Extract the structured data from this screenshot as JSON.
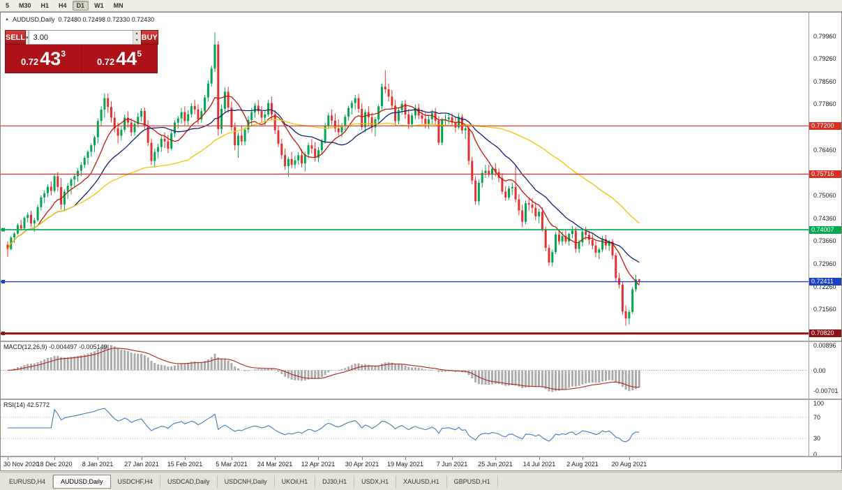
{
  "toolbar": {
    "timeframes": [
      {
        "label": "5",
        "active": false
      },
      {
        "label": "M30",
        "active": false
      },
      {
        "label": "H1",
        "active": false
      },
      {
        "label": "H4",
        "active": false
      },
      {
        "label": "D1",
        "active": true
      },
      {
        "label": "W1",
        "active": false
      },
      {
        "label": "MN",
        "active": false
      }
    ]
  },
  "chart": {
    "title_symbol": "AUDUSD,Daily",
    "title_ohlc": "0.72480 0.72498 0.72330 0.72430"
  },
  "trade_panel": {
    "sell_label": "SELL",
    "buy_label": "BUY",
    "volume": "3.00",
    "bid": {
      "prefix": "0.72",
      "big": "43",
      "sup": "3"
    },
    "ask": {
      "prefix": "0.72",
      "big": "44",
      "sup": "5"
    }
  },
  "chart_data": {
    "type": "candlestick",
    "symbol": "AUDUSD",
    "timeframe": "Daily",
    "colors": {
      "bull": "#00a651",
      "bear": "#e03131",
      "background": "#ffffff"
    },
    "price_axis_labels": [
      "0.79960",
      "0.79260",
      "0.78560",
      "0.77860",
      "0.76460",
      "0.75060",
      "0.74360",
      "0.73660",
      "0.72960",
      "0.72260",
      "0.71560"
    ],
    "hlines": [
      {
        "price": 0.772,
        "label": "0.77200",
        "color": "#d93025",
        "width": 1.2,
        "handle": false
      },
      {
        "price": 0.75716,
        "label": "0.75716",
        "color": "#d93025",
        "width": 1.2,
        "handle": false
      },
      {
        "price": 0.74007,
        "label": "0.74007",
        "color": "#00a94f",
        "width": 1.6,
        "handle": true
      },
      {
        "price": 0.72411,
        "label": "0.72411",
        "color": "#1a40c8",
        "width": 1.4,
        "handle": true
      },
      {
        "price": 0.70826,
        "label": "0.70826",
        "color": "#2a50d8",
        "width": 1,
        "handle": true
      },
      {
        "price": 0.7082,
        "label": "0.70820",
        "color": "#8e1313",
        "width": 3,
        "handle": true
      }
    ],
    "moving_averages": [
      {
        "period": 10,
        "color": "#c21807"
      },
      {
        "period": 21,
        "color": "#10216e"
      },
      {
        "period": 55,
        "color": "#f4c400"
      }
    ],
    "x_labels": [
      {
        "text": "30 Nov 2020",
        "index": 0
      },
      {
        "text": "18 Dec 2020",
        "index": 14
      },
      {
        "text": "8 Jan 2021",
        "index": 27
      },
      {
        "text": "27 Jan 2021",
        "index": 40
      },
      {
        "text": "15 Feb 2021",
        "index": 53
      },
      {
        "text": "5 Mar 2021",
        "index": 67
      },
      {
        "text": "24 Mar 2021",
        "index": 80
      },
      {
        "text": "12 Apr 2021",
        "index": 93
      },
      {
        "text": "30 Apr 2021",
        "index": 106
      },
      {
        "text": "19 May 2021",
        "index": 119
      },
      {
        "text": "7 Jun 2021",
        "index": 133
      },
      {
        "text": "25 Jun 2021",
        "index": 146
      },
      {
        "text": "14 Jul 2021",
        "index": 159
      },
      {
        "text": "2 Aug 2021",
        "index": 172
      },
      {
        "text": "20 Aug 2021",
        "index": 186
      }
    ],
    "macd": {
      "label": "MACD(12,26,9) -0.004497 -0.005149",
      "fast": 12,
      "slow": 26,
      "signal": 9,
      "axis_labels": [
        "0.00896",
        "0.00",
        "-0.00701"
      ],
      "histogram_color": "#ababab",
      "signal_color": "#b22222"
    },
    "rsi": {
      "label": "RSI(14) 42.5772",
      "period": 14,
      "levels": [
        70,
        30
      ],
      "axis_labels": [
        "100",
        "70",
        "30",
        "0"
      ],
      "line_color": "#3e7bbf"
    },
    "candles": [
      [
        0.7355,
        0.7365,
        0.7317,
        0.7341
      ],
      [
        0.7341,
        0.7382,
        0.7338,
        0.7377
      ],
      [
        0.7377,
        0.7394,
        0.736,
        0.7389
      ],
      [
        0.7389,
        0.742,
        0.7385,
        0.7415
      ],
      [
        0.7415,
        0.7431,
        0.7398,
        0.7405
      ],
      [
        0.7405,
        0.7442,
        0.74,
        0.7437
      ],
      [
        0.7437,
        0.7454,
        0.7423,
        0.7447
      ],
      [
        0.7447,
        0.7459,
        0.741,
        0.742
      ],
      [
        0.742,
        0.7437,
        0.7394,
        0.743
      ],
      [
        0.743,
        0.7477,
        0.7425,
        0.747
      ],
      [
        0.747,
        0.7506,
        0.746,
        0.75
      ],
      [
        0.75,
        0.7521,
        0.7482,
        0.7513
      ],
      [
        0.7513,
        0.754,
        0.75,
        0.7533
      ],
      [
        0.7533,
        0.7549,
        0.7506,
        0.752
      ],
      [
        0.752,
        0.7573,
        0.7515,
        0.7565
      ],
      [
        0.7565,
        0.7578,
        0.7518,
        0.7532
      ],
      [
        0.7532,
        0.756,
        0.7462,
        0.7478
      ],
      [
        0.7478,
        0.7525,
        0.7458,
        0.7518
      ],
      [
        0.7518,
        0.7544,
        0.7495,
        0.7536
      ],
      [
        0.7536,
        0.756,
        0.751,
        0.7555
      ],
      [
        0.7555,
        0.7572,
        0.7532,
        0.7565
      ],
      [
        0.7565,
        0.759,
        0.7548,
        0.7582
      ],
      [
        0.7582,
        0.7608,
        0.7565,
        0.76
      ],
      [
        0.76,
        0.7628,
        0.759,
        0.7622
      ],
      [
        0.7622,
        0.7645,
        0.76,
        0.764
      ],
      [
        0.764,
        0.7666,
        0.7625,
        0.766
      ],
      [
        0.766,
        0.769,
        0.764,
        0.7685
      ],
      [
        0.7685,
        0.7743,
        0.7666,
        0.7735
      ],
      [
        0.7735,
        0.778,
        0.772,
        0.777
      ],
      [
        0.777,
        0.782,
        0.7745,
        0.7805
      ],
      [
        0.7805,
        0.7819,
        0.776,
        0.7778
      ],
      [
        0.7778,
        0.7795,
        0.773,
        0.7745
      ],
      [
        0.7745,
        0.7763,
        0.77,
        0.7712
      ],
      [
        0.7712,
        0.773,
        0.7666,
        0.769
      ],
      [
        0.769,
        0.772,
        0.7675,
        0.7708
      ],
      [
        0.7708,
        0.7755,
        0.77,
        0.7745
      ],
      [
        0.7745,
        0.7765,
        0.7715,
        0.773
      ],
      [
        0.773,
        0.7742,
        0.7688,
        0.77
      ],
      [
        0.77,
        0.7735,
        0.769,
        0.7726
      ],
      [
        0.7726,
        0.776,
        0.7715,
        0.7748
      ],
      [
        0.7748,
        0.7774,
        0.7733,
        0.7766
      ],
      [
        0.7766,
        0.7776,
        0.771,
        0.772
      ],
      [
        0.772,
        0.7738,
        0.7658,
        0.7668
      ],
      [
        0.7668,
        0.768,
        0.76,
        0.7612
      ],
      [
        0.7612,
        0.765,
        0.7592,
        0.764
      ],
      [
        0.764,
        0.7665,
        0.762,
        0.7655
      ],
      [
        0.7655,
        0.769,
        0.764,
        0.768
      ],
      [
        0.768,
        0.77,
        0.7652,
        0.7672
      ],
      [
        0.7672,
        0.7692,
        0.7636,
        0.765
      ],
      [
        0.765,
        0.7706,
        0.7645,
        0.7697
      ],
      [
        0.7697,
        0.7737,
        0.7685,
        0.773
      ],
      [
        0.773,
        0.775,
        0.7712,
        0.7743
      ],
      [
        0.7743,
        0.7775,
        0.7726,
        0.7762
      ],
      [
        0.7762,
        0.778,
        0.772,
        0.7735
      ],
      [
        0.7735,
        0.7768,
        0.7722,
        0.7756
      ],
      [
        0.7756,
        0.779,
        0.7745,
        0.7781
      ],
      [
        0.7781,
        0.78,
        0.7755,
        0.777
      ],
      [
        0.777,
        0.7786,
        0.7725,
        0.774
      ],
      [
        0.774,
        0.7775,
        0.773,
        0.7765
      ],
      [
        0.7765,
        0.7815,
        0.7755,
        0.7807
      ],
      [
        0.7807,
        0.786,
        0.7795,
        0.785
      ],
      [
        0.785,
        0.7905,
        0.784,
        0.7896
      ],
      [
        0.7896,
        0.8007,
        0.7885,
        0.797
      ],
      [
        0.797,
        0.798,
        0.769,
        0.771
      ],
      [
        0.771,
        0.7785,
        0.7695,
        0.7772
      ],
      [
        0.7772,
        0.7838,
        0.776,
        0.7825
      ],
      [
        0.7825,
        0.784,
        0.776,
        0.7776
      ],
      [
        0.7776,
        0.7795,
        0.7705,
        0.7716
      ],
      [
        0.7716,
        0.773,
        0.7645,
        0.766
      ],
      [
        0.766,
        0.7698,
        0.7622,
        0.769
      ],
      [
        0.769,
        0.772,
        0.766,
        0.7672
      ],
      [
        0.7672,
        0.7716,
        0.766,
        0.7708
      ],
      [
        0.7708,
        0.775,
        0.7698,
        0.7738
      ],
      [
        0.7738,
        0.7775,
        0.772,
        0.7762
      ],
      [
        0.7762,
        0.779,
        0.7745,
        0.7782
      ],
      [
        0.7782,
        0.78,
        0.7755,
        0.7765
      ],
      [
        0.7765,
        0.778,
        0.773,
        0.7745
      ],
      [
        0.7745,
        0.7765,
        0.772,
        0.7755
      ],
      [
        0.7755,
        0.78,
        0.7748,
        0.779
      ],
      [
        0.779,
        0.781,
        0.774,
        0.7755
      ],
      [
        0.7755,
        0.7768,
        0.7695,
        0.7706
      ],
      [
        0.7706,
        0.772,
        0.7655,
        0.7665
      ],
      [
        0.7665,
        0.768,
        0.7618,
        0.763
      ],
      [
        0.763,
        0.765,
        0.7585,
        0.7596
      ],
      [
        0.7596,
        0.7625,
        0.7563,
        0.7618
      ],
      [
        0.7618,
        0.764,
        0.759,
        0.76
      ],
      [
        0.76,
        0.7628,
        0.7588,
        0.7614
      ],
      [
        0.7614,
        0.764,
        0.76,
        0.763
      ],
      [
        0.763,
        0.7648,
        0.7592,
        0.7605
      ],
      [
        0.7605,
        0.764,
        0.758,
        0.7632
      ],
      [
        0.7632,
        0.7668,
        0.762,
        0.766
      ],
      [
        0.766,
        0.768,
        0.7635,
        0.765
      ],
      [
        0.765,
        0.767,
        0.761,
        0.7622
      ],
      [
        0.7622,
        0.7655,
        0.7608,
        0.7645
      ],
      [
        0.7645,
        0.768,
        0.7632,
        0.7672
      ],
      [
        0.7672,
        0.773,
        0.7665,
        0.772
      ],
      [
        0.772,
        0.776,
        0.771,
        0.7752
      ],
      [
        0.7752,
        0.777,
        0.7722,
        0.7736
      ],
      [
        0.7736,
        0.7758,
        0.77,
        0.7712
      ],
      [
        0.7712,
        0.774,
        0.769,
        0.77
      ],
      [
        0.77,
        0.7728,
        0.7685,
        0.772
      ],
      [
        0.772,
        0.7755,
        0.7705,
        0.7748
      ],
      [
        0.7748,
        0.7782,
        0.7735,
        0.7775
      ],
      [
        0.7775,
        0.7798,
        0.7755,
        0.779
      ],
      [
        0.779,
        0.7815,
        0.777,
        0.7805
      ],
      [
        0.7805,
        0.7818,
        0.776,
        0.7772
      ],
      [
        0.7772,
        0.779,
        0.7708,
        0.7716
      ],
      [
        0.7716,
        0.777,
        0.77,
        0.7762
      ],
      [
        0.7762,
        0.778,
        0.772,
        0.7746
      ],
      [
        0.7746,
        0.776,
        0.77,
        0.7715
      ],
      [
        0.7715,
        0.7748,
        0.7688,
        0.774
      ],
      [
        0.774,
        0.7785,
        0.773,
        0.778
      ],
      [
        0.778,
        0.785,
        0.777,
        0.784
      ],
      [
        0.784,
        0.7891,
        0.782,
        0.7832
      ],
      [
        0.7832,
        0.785,
        0.7795,
        0.781
      ],
      [
        0.781,
        0.783,
        0.777,
        0.7782
      ],
      [
        0.7782,
        0.78,
        0.7722,
        0.7735
      ],
      [
        0.7735,
        0.7775,
        0.7725,
        0.7768
      ],
      [
        0.7768,
        0.7796,
        0.7755,
        0.7788
      ],
      [
        0.7788,
        0.78,
        0.7742,
        0.7755
      ],
      [
        0.7755,
        0.7772,
        0.771,
        0.7725
      ],
      [
        0.7725,
        0.776,
        0.7715,
        0.7752
      ],
      [
        0.7752,
        0.7785,
        0.774,
        0.7775
      ],
      [
        0.7775,
        0.7788,
        0.774,
        0.7752
      ],
      [
        0.7752,
        0.777,
        0.7726,
        0.7742
      ],
      [
        0.7742,
        0.776,
        0.7712,
        0.7726
      ],
      [
        0.7726,
        0.775,
        0.771,
        0.774
      ],
      [
        0.774,
        0.7769,
        0.7725,
        0.776
      ],
      [
        0.776,
        0.7775,
        0.7722,
        0.7736
      ],
      [
        0.7736,
        0.775,
        0.766,
        0.7668
      ],
      [
        0.7668,
        0.7745,
        0.766,
        0.7738
      ],
      [
        0.7738,
        0.7755,
        0.772,
        0.774
      ],
      [
        0.774,
        0.776,
        0.7725,
        0.7746
      ],
      [
        0.7746,
        0.7758,
        0.7718,
        0.773
      ],
      [
        0.773,
        0.7748,
        0.77,
        0.7715
      ],
      [
        0.7715,
        0.776,
        0.771,
        0.7748
      ],
      [
        0.7748,
        0.7756,
        0.7695,
        0.7706
      ],
      [
        0.7706,
        0.7725,
        0.768,
        0.7712
      ],
      [
        0.7712,
        0.772,
        0.76,
        0.7612
      ],
      [
        0.7612,
        0.7625,
        0.754,
        0.7552
      ],
      [
        0.7552,
        0.7565,
        0.7478,
        0.7488
      ],
      [
        0.7488,
        0.7555,
        0.7476,
        0.7545
      ],
      [
        0.7545,
        0.7585,
        0.753,
        0.7575
      ],
      [
        0.7575,
        0.76,
        0.756,
        0.7582
      ],
      [
        0.7582,
        0.76,
        0.7562,
        0.757
      ],
      [
        0.757,
        0.7595,
        0.7555,
        0.7588
      ],
      [
        0.7588,
        0.7605,
        0.7565,
        0.7578
      ],
      [
        0.7578,
        0.759,
        0.7546,
        0.756
      ],
      [
        0.756,
        0.7575,
        0.751,
        0.7518
      ],
      [
        0.7518,
        0.7535,
        0.749,
        0.75
      ],
      [
        0.75,
        0.7535,
        0.7492,
        0.7528
      ],
      [
        0.7528,
        0.7545,
        0.7508,
        0.7532
      ],
      [
        0.7532,
        0.7599,
        0.7485,
        0.7494
      ],
      [
        0.7494,
        0.751,
        0.7445,
        0.746
      ],
      [
        0.746,
        0.7478,
        0.7408,
        0.7425
      ],
      [
        0.7425,
        0.749,
        0.7418,
        0.7482
      ],
      [
        0.7482,
        0.75,
        0.746,
        0.7478
      ],
      [
        0.7478,
        0.7498,
        0.7452,
        0.7468
      ],
      [
        0.7468,
        0.7485,
        0.743,
        0.7442
      ],
      [
        0.7442,
        0.7465,
        0.742,
        0.7456
      ],
      [
        0.7456,
        0.747,
        0.7395,
        0.7402
      ],
      [
        0.7402,
        0.741,
        0.7335,
        0.7345
      ],
      [
        0.7345,
        0.7355,
        0.729,
        0.73
      ],
      [
        0.73,
        0.734,
        0.7288,
        0.7332
      ],
      [
        0.7332,
        0.7395,
        0.7325,
        0.7386
      ],
      [
        0.7386,
        0.74,
        0.7355,
        0.7365
      ],
      [
        0.7365,
        0.7395,
        0.7352,
        0.7382
      ],
      [
        0.7382,
        0.74,
        0.7358,
        0.7365
      ],
      [
        0.7365,
        0.7392,
        0.7352,
        0.7388
      ],
      [
        0.7388,
        0.7412,
        0.7375,
        0.7398
      ],
      [
        0.7398,
        0.7408,
        0.733,
        0.7342
      ],
      [
        0.7342,
        0.737,
        0.733,
        0.7362
      ],
      [
        0.7362,
        0.7402,
        0.735,
        0.7395
      ],
      [
        0.7395,
        0.741,
        0.737,
        0.7385
      ],
      [
        0.7385,
        0.7398,
        0.7355,
        0.737
      ],
      [
        0.737,
        0.739,
        0.734,
        0.7352
      ],
      [
        0.7352,
        0.7365,
        0.7316,
        0.733
      ],
      [
        0.733,
        0.7345,
        0.731,
        0.734
      ],
      [
        0.734,
        0.7382,
        0.7332,
        0.7372
      ],
      [
        0.7372,
        0.7385,
        0.734,
        0.7352
      ],
      [
        0.7352,
        0.737,
        0.7336,
        0.7365
      ],
      [
        0.7365,
        0.7372,
        0.731,
        0.7322
      ],
      [
        0.7322,
        0.733,
        0.724,
        0.7252
      ],
      [
        0.7252,
        0.7268,
        0.722,
        0.7232
      ],
      [
        0.7232,
        0.724,
        0.714,
        0.715
      ],
      [
        0.715,
        0.7168,
        0.7106,
        0.7128
      ],
      [
        0.7128,
        0.7155,
        0.711,
        0.7148
      ],
      [
        0.7148,
        0.7225,
        0.7142,
        0.7218
      ],
      [
        0.7218,
        0.7262,
        0.721,
        0.7248
      ],
      [
        0.7248,
        0.725,
        0.7233,
        0.7243
      ]
    ]
  },
  "tabs": {
    "items": [
      {
        "label": "EURUSD,H4",
        "active": false
      },
      {
        "label": "AUDUSD,Daily",
        "active": true
      },
      {
        "label": "USDCHF,H4",
        "active": false
      },
      {
        "label": "USDCAD,Daily",
        "active": false
      },
      {
        "label": "USDCNH,Daily",
        "active": false
      },
      {
        "label": "UKOil,H1",
        "active": false
      },
      {
        "label": "DJ30,H1",
        "active": false
      },
      {
        "label": "USDX,H1",
        "active": false
      },
      {
        "label": "XAUUSD,H1",
        "active": false
      },
      {
        "label": "GBPUSD,H1",
        "active": false
      }
    ]
  }
}
